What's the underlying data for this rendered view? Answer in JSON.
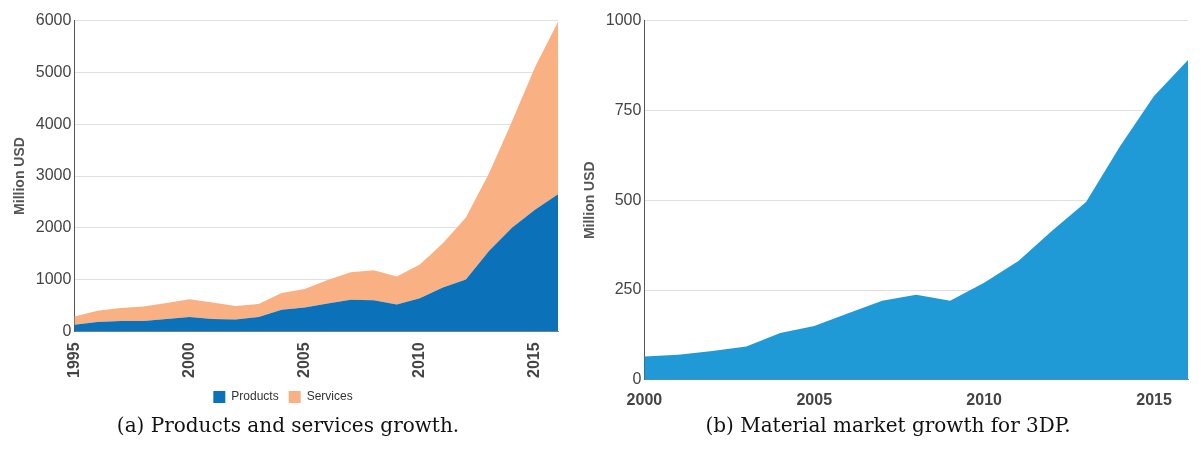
{
  "chart_data": [
    {
      "type": "area",
      "stacked": true,
      "ylabel": "Million USD",
      "annotations": [
        "(a) Products and services growth."
      ],
      "x": [
        1995,
        1996,
        1997,
        1998,
        1999,
        2000,
        2001,
        2002,
        2003,
        2004,
        2005,
        2006,
        2007,
        2008,
        2009,
        2010,
        2011,
        2012,
        2013,
        2014,
        2015,
        2016
      ],
      "series": [
        {
          "name": "Products",
          "color": "#0b72b9",
          "values": [
            130,
            180,
            200,
            200,
            240,
            280,
            240,
            230,
            280,
            420,
            460,
            540,
            610,
            600,
            520,
            640,
            850,
            1000,
            1550,
            2000,
            2350,
            2650
          ]
        },
        {
          "name": "Services",
          "color": "#f9b183",
          "values": [
            160,
            220,
            250,
            280,
            310,
            340,
            320,
            260,
            250,
            320,
            360,
            450,
            530,
            580,
            540,
            650,
            850,
            1200,
            1500,
            2050,
            2750,
            3330
          ]
        }
      ],
      "xlim": [
        1995,
        2016
      ],
      "xticks": [
        1995,
        2000,
        2005,
        2010,
        2015
      ],
      "ylim": [
        0,
        6000
      ],
      "yticks": [
        0,
        1000,
        2000,
        3000,
        4000,
        5000,
        6000
      ],
      "grid": "y",
      "legend": "bottom"
    },
    {
      "type": "area",
      "ylabel": "Million USD",
      "annotations": [
        "(b) Material market growth for 3DP."
      ],
      "x": [
        2000,
        2001,
        2002,
        2003,
        2004,
        2005,
        2006,
        2007,
        2008,
        2009,
        2010,
        2011,
        2012,
        2013,
        2014,
        2015,
        2016
      ],
      "series": [
        {
          "color": "#1f9ad6",
          "values": [
            65,
            70,
            80,
            93,
            130,
            150,
            185,
            220,
            237,
            220,
            270,
            330,
            415,
            495,
            650,
            790,
            890
          ]
        }
      ],
      "xlim": [
        2000,
        2016
      ],
      "xticks": [
        2000,
        2005,
        2010,
        2015
      ],
      "ylim": [
        0,
        1000
      ],
      "yticks": [
        0,
        250,
        500,
        750,
        1000
      ],
      "grid": "y"
    }
  ]
}
